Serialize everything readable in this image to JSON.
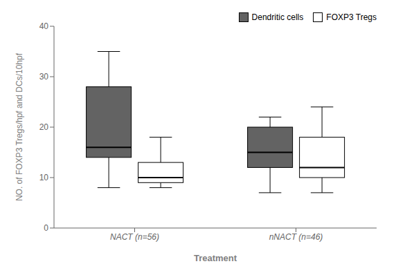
{
  "chart_data": {
    "type": "box",
    "categories": [
      "NACT (n=56)",
      "nNACT (n=46)"
    ],
    "series": [
      {
        "name": "Dendritic cells",
        "color": "#636363",
        "values": [
          {
            "whislo": 8,
            "q1": 14,
            "med": 16,
            "q3": 28,
            "whishi": 35
          },
          {
            "whislo": 7,
            "q1": 12,
            "med": 15,
            "q3": 20,
            "whishi": 22
          }
        ]
      },
      {
        "name": "FOXP3 Tregs",
        "color": "#ffffff",
        "values": [
          {
            "whislo": 8,
            "q1": 9,
            "med": 10,
            "q3": 13,
            "whishi": 18
          },
          {
            "whislo": 7,
            "q1": 10,
            "med": 12,
            "q3": 18,
            "whishi": 24
          }
        ]
      }
    ],
    "xlabel": "Treatment",
    "ylabel": "NO. of FOXP3 Tregs/hpf and DCs/10hpf",
    "ylim": [
      0,
      40
    ],
    "yticks": [
      0,
      10,
      20,
      30,
      40
    ],
    "legend": "upper right",
    "grid": false
  }
}
